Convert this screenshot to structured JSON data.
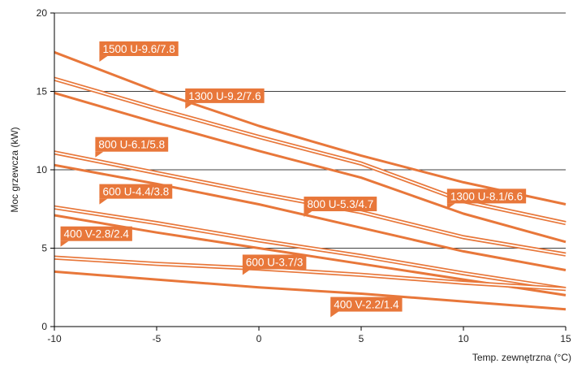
{
  "chart_data": {
    "type": "line",
    "xlabel": "Temp. zewnętrzna (°C)",
    "ylabel": "Moc grzewcza (kW)",
    "xlim": [
      -10,
      15
    ],
    "ylim": [
      0,
      20
    ],
    "x_ticks": [
      -10,
      -5,
      0,
      5,
      10,
      15
    ],
    "y_ticks": [
      0,
      5,
      10,
      15,
      20
    ],
    "grid": "horizontal",
    "colors": {
      "line": "#e8773a",
      "label_bg": "#e8773a",
      "grid": "#000000"
    },
    "series": [
      {
        "name": "1500 U-9.6/7.8",
        "style": "solid",
        "x": [
          -10,
          -5,
          0,
          5,
          10,
          15
        ],
        "y": [
          17.5,
          15.0,
          12.8,
          10.9,
          9.2,
          7.8
        ],
        "label_at": [
          -7.8,
          17.1
        ]
      },
      {
        "name": "1300 U-9.2/7.6",
        "style": "double",
        "x": [
          -10,
          -5,
          0,
          5,
          10,
          15
        ],
        "y": [
          15.8,
          13.9,
          12.1,
          10.4,
          8.0,
          6.6
        ],
        "label_at": [
          -3.6,
          14.1
        ]
      },
      {
        "name": "1300 U-8.1/6.6",
        "style": "solid",
        "x": [
          -10,
          -5,
          0,
          5,
          10,
          15
        ],
        "y": [
          14.9,
          13.0,
          11.2,
          9.5,
          7.2,
          5.4
        ],
        "label_at": [
          9.2,
          7.7
        ]
      },
      {
        "name": "800 U-6.1/5.8",
        "style": "double",
        "x": [
          -10,
          -5,
          0,
          5,
          10,
          15
        ],
        "y": [
          11.1,
          9.8,
          8.5,
          7.3,
          5.7,
          4.6
        ],
        "label_at": [
          -8.0,
          11.0
        ]
      },
      {
        "name": "800 U-5.3/4.7",
        "style": "solid",
        "x": [
          -10,
          -5,
          0,
          5,
          10,
          15
        ],
        "y": [
          10.3,
          9.1,
          7.8,
          6.3,
          4.8,
          3.6
        ],
        "label_at": [
          2.2,
          7.2
        ]
      },
      {
        "name": "600 U-4.4/3.8",
        "style": "double",
        "x": [
          -10,
          -5,
          0,
          5,
          10,
          15
        ],
        "y": [
          7.6,
          6.6,
          5.5,
          4.5,
          3.4,
          2.4
        ],
        "label_at": [
          -7.8,
          8.0
        ]
      },
      {
        "name": "600 U-3.7/3",
        "style": "solid",
        "x": [
          -10,
          -5,
          0,
          5,
          10,
          15
        ],
        "y": [
          7.1,
          6.0,
          5.0,
          4.0,
          3.0,
          2.0
        ],
        "label_at": [
          -0.8,
          3.5
        ]
      },
      {
        "name": "400 V-2.8/2.4",
        "style": "double",
        "x": [
          -10,
          -5,
          0,
          5,
          10,
          15
        ],
        "y": [
          4.4,
          4.0,
          3.7,
          3.3,
          2.8,
          2.4
        ],
        "label_at": [
          -9.7,
          5.3
        ]
      },
      {
        "name": "400 V-2.2/1.4",
        "style": "solid",
        "x": [
          -10,
          -5,
          0,
          5,
          10,
          15
        ],
        "y": [
          3.5,
          3.0,
          2.5,
          2.1,
          1.6,
          1.1
        ],
        "label_at": [
          3.5,
          0.8
        ]
      }
    ]
  }
}
